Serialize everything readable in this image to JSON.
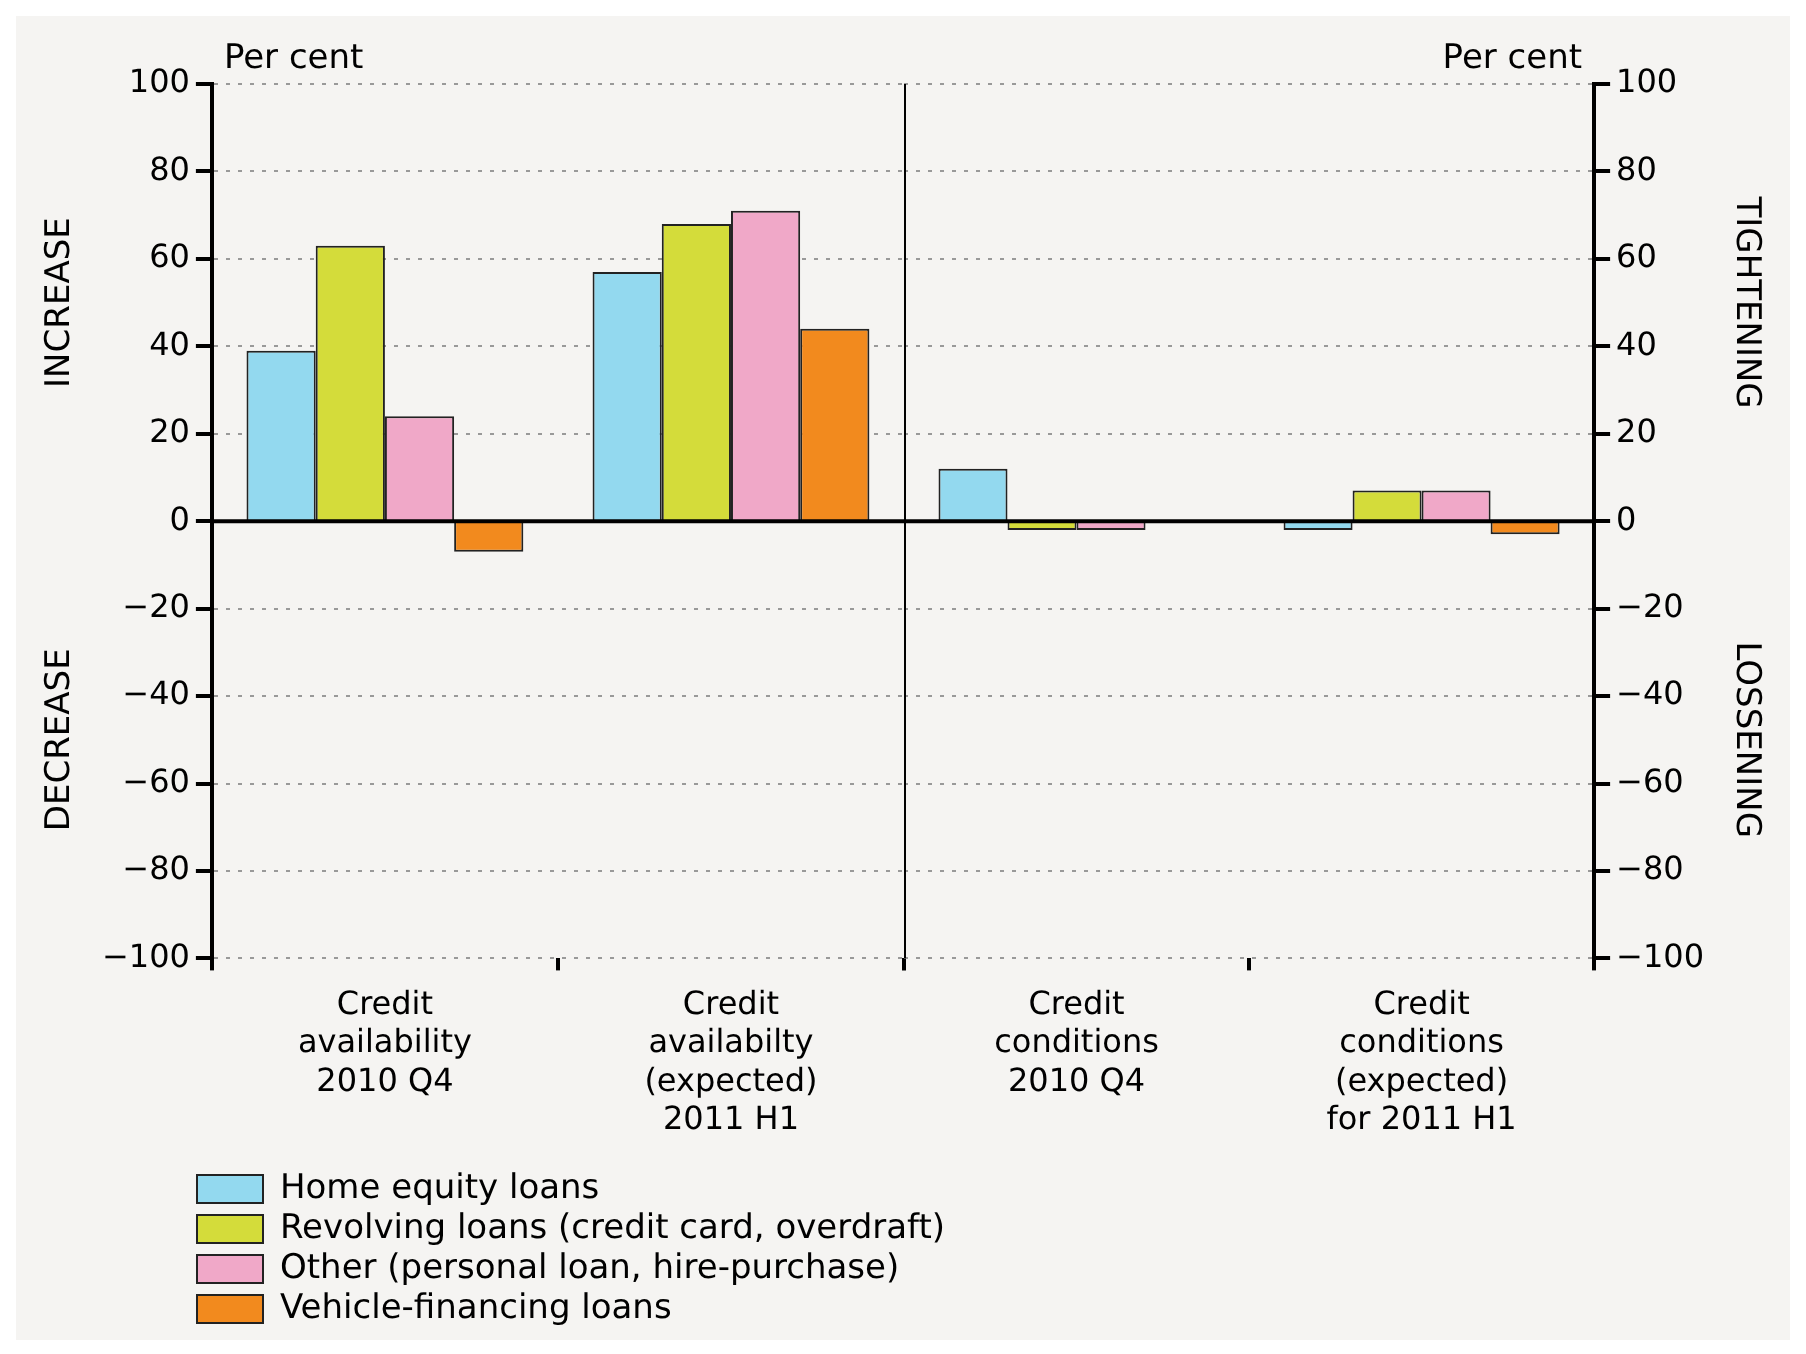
{
  "chart_data": [
    {
      "type": "bar",
      "categories": [
        "Credit\navailability\n2010 Q4",
        "Credit\navailabilty\n(expected)\n2011 H1"
      ],
      "series": [
        {
          "name": "Home equity loans",
          "color": "#93d9ef",
          "values": [
            39,
            57
          ]
        },
        {
          "name": "Revolving loans (credit card, overdraft)",
          "color": "#d4dc3a",
          "values": [
            63,
            68
          ]
        },
        {
          "name": "Other (personal loan, hire-purchase)",
          "color": "#f0a8c8",
          "values": [
            24,
            71
          ]
        },
        {
          "name": "Vehicle-financing loans",
          "color": "#f28a1e",
          "values": [
            -7,
            44
          ]
        }
      ],
      "ylabel": "Per cent",
      "ylim": [
        -100,
        100
      ],
      "yticks": [
        -100,
        -80,
        -60,
        -40,
        -20,
        0,
        20,
        40,
        60,
        80,
        100
      ],
      "annotations": [
        "INCREASE",
        "DECREASE"
      ],
      "grid": "y",
      "legend": "bottom left"
    },
    {
      "type": "bar",
      "categories": [
        "Credit\nconditions\n2010 Q4",
        "Credit\nconditions\n(expected)\nfor 2011 H1"
      ],
      "series": [
        {
          "color": "#93d9ef",
          "values": [
            12,
            -2
          ],
          "axis": "y2"
        },
        {
          "color": "#d4dc3a",
          "values": [
            -2,
            7
          ],
          "axis": "y2"
        },
        {
          "color": "#f0a8c8",
          "values": [
            -2,
            7
          ],
          "axis": "y2"
        },
        {
          "color": "#f28a1e",
          "values": [
            null,
            -3
          ],
          "axis": "y2"
        }
      ],
      "y2label": "Per cent",
      "y2lim": [
        -100,
        100
      ],
      "y2ticks": [
        -100,
        -80,
        -60,
        -40,
        -20,
        0,
        20,
        40,
        60,
        80,
        100
      ],
      "annotations": [
        "TIGHTENING",
        "LOSSENING"
      ],
      "grid": "y"
    }
  ]
}
